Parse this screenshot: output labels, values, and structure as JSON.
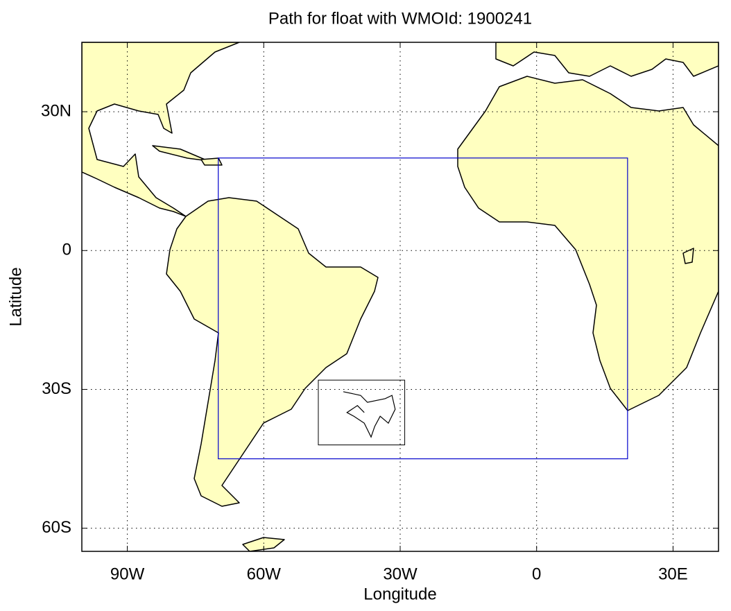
{
  "map": {
    "title": "Path for float with WMOId: 1900241",
    "xlabel": "Longitude",
    "ylabel": "Latitude",
    "xlim": [
      -100,
      40
    ],
    "ylim": [
      -65,
      45
    ],
    "xticks": [
      {
        "value": -90,
        "label": "90W"
      },
      {
        "value": -60,
        "label": "60W"
      },
      {
        "value": -30,
        "label": "30W"
      },
      0,
      {
        "value": 30,
        "label": "30E"
      }
    ],
    "yticks": [
      {
        "value": 30,
        "label": "30N"
      },
      0,
      {
        "value": -30,
        "label": "30S"
      },
      {
        "value": -60,
        "label": "60S"
      }
    ],
    "grid": true,
    "region": {
      "color": "#0000cc",
      "lon": [
        -70,
        20
      ],
      "lat": [
        -45,
        20
      ]
    },
    "inset": {
      "color": "#000000",
      "lon": [
        -48,
        -29
      ],
      "lat": [
        -42,
        -28
      ]
    },
    "track": {
      "color": "#000000",
      "lon": [
        -42.5,
        -38.7,
        -37.2,
        -33.3,
        -31.8,
        -31.1,
        -32.6,
        -34.4,
        -35.6,
        -36.4,
        -37.9,
        -40.2,
        -41.7,
        -39.4,
        -37.9
      ],
      "lat": [
        -30.5,
        -31.3,
        -32.8,
        -32,
        -31.3,
        -34.3,
        -37.3,
        -35.8,
        -38,
        -40.3,
        -37.3,
        -35.8,
        -35,
        -33.5,
        -35
      ]
    }
  }
}
